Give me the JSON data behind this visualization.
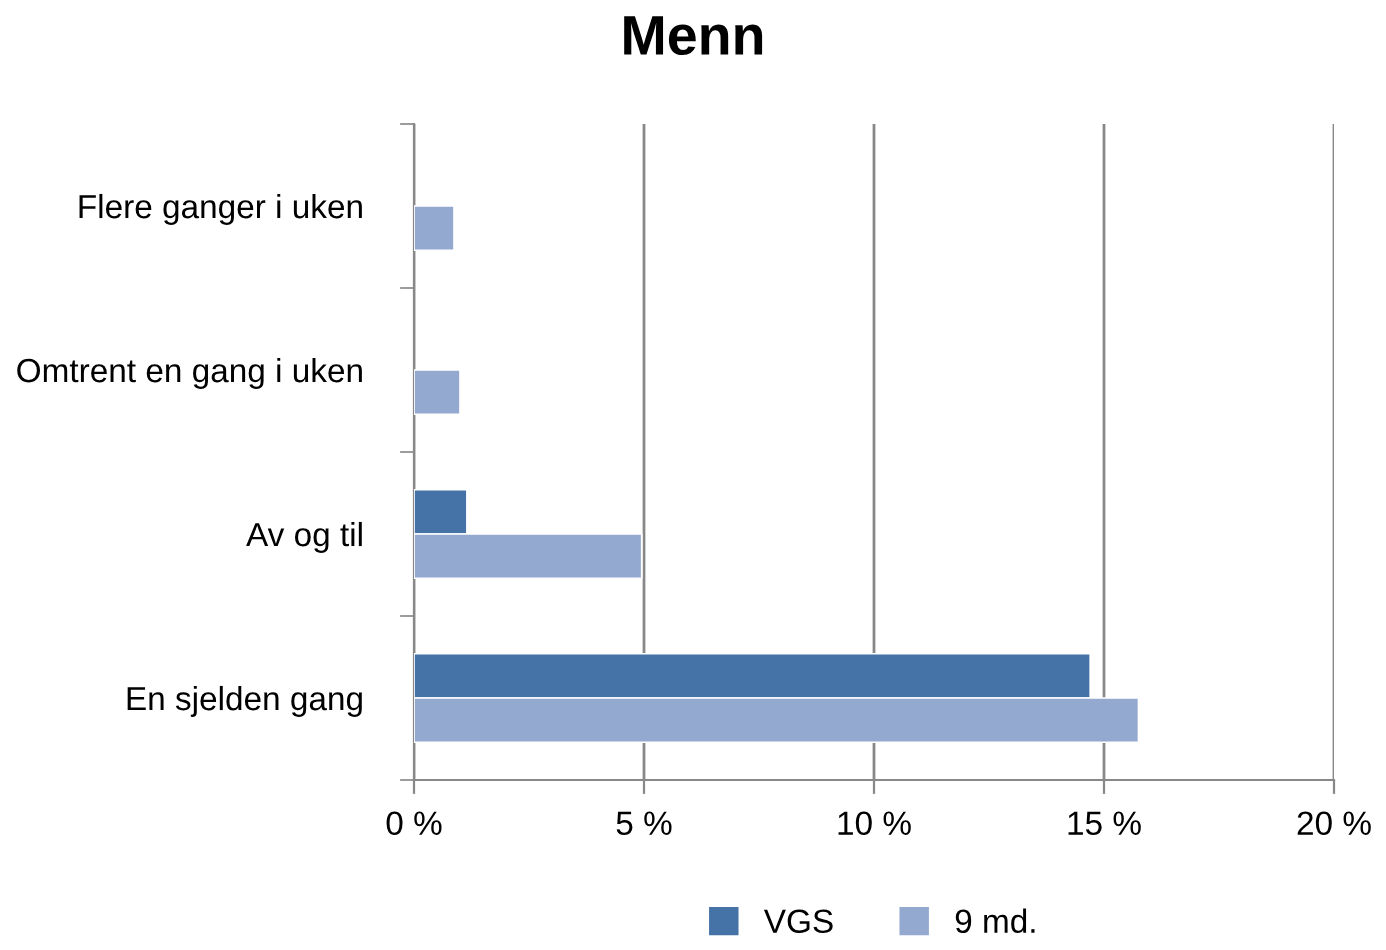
{
  "chart_data": {
    "type": "bar",
    "orientation": "horizontal",
    "title": "Menn",
    "categories": [
      "Flere ganger i uken",
      "Omtrent en gang i uken",
      "Av og til",
      "En sjelden gang"
    ],
    "series": [
      {
        "name": "VGS",
        "color": "#4572a7",
        "values": [
          null,
          null,
          1.15,
          14.7
        ]
      },
      {
        "name": "9 md.",
        "color": "#94a9d0",
        "values": [
          0.87,
          1.0,
          4.95,
          15.75
        ]
      }
    ],
    "xlim": [
      0,
      20
    ],
    "xticks": [
      {
        "value": 0,
        "label": "0 %"
      },
      {
        "value": 5,
        "label": "5 %"
      },
      {
        "value": 10,
        "label": "10 %"
      },
      {
        "value": 15,
        "label": "15 %"
      },
      {
        "value": 20,
        "label": "20 %"
      }
    ],
    "grid": "x",
    "legend": "bottom"
  }
}
